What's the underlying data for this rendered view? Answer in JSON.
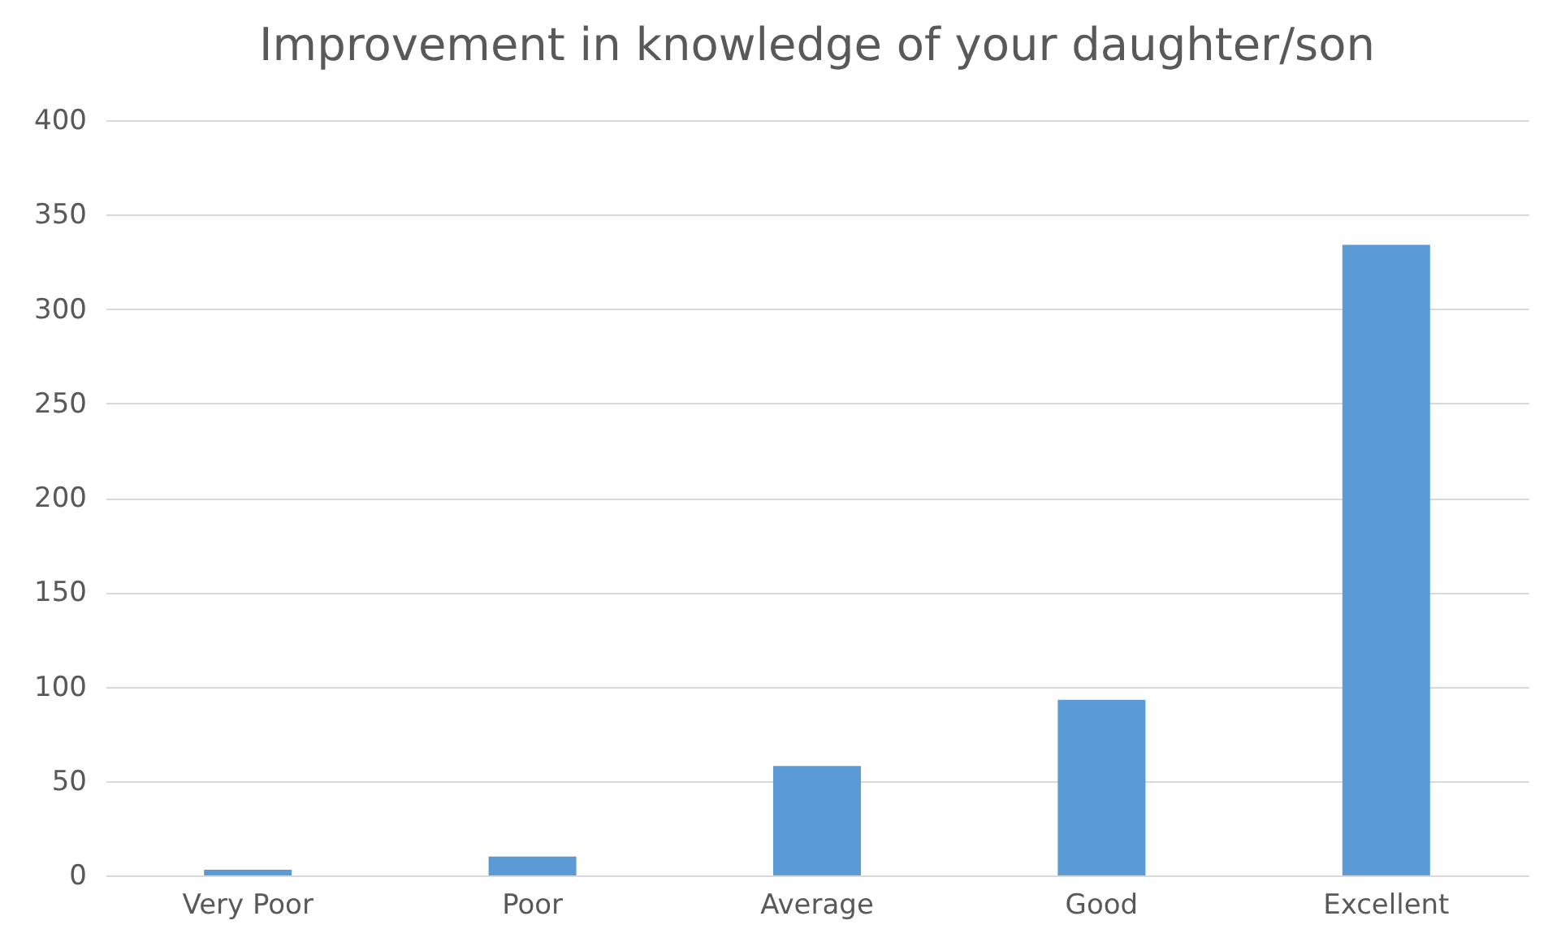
{
  "chart_data": {
    "type": "bar",
    "title": "Improvement in knowledge of your daughter/son",
    "categories": [
      "Very Poor",
      "Poor",
      "Average",
      "Good",
      "Excellent"
    ],
    "values": [
      3,
      10,
      58,
      93,
      334
    ],
    "color": "#5b9bd5",
    "ylim": [
      0,
      400
    ],
    "yticks": [
      0,
      50,
      100,
      150,
      200,
      250,
      300,
      350,
      400
    ],
    "grid": "y"
  }
}
